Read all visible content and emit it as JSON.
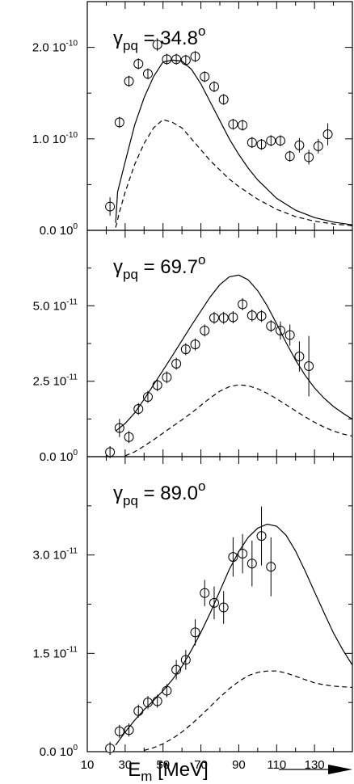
{
  "chart_data": [
    {
      "type": "scatter",
      "title": {
        "symbol": "γ",
        "subscript": "pq",
        "value": "= 34.8",
        "superscript": "o"
      },
      "xlim": [
        10,
        150
      ],
      "ylim": [
        0,
        2.5e-10
      ],
      "yticks": [
        {
          "value": 0,
          "mantissa": "0.0 10",
          "exp": "0"
        },
        {
          "value": 1e-10,
          "mantissa": "1.0 10",
          "exp": "-10"
        },
        {
          "value": 2e-10,
          "mantissa": "2.0 10",
          "exp": "-10"
        }
      ],
      "yminor": [
        5e-11,
        1.5e-10
      ],
      "series": [
        {
          "kind": "points",
          "data": [
            {
              "x": 22,
              "y": 2.6e-11,
              "err": 1e-11
            },
            {
              "x": 27,
              "y": 1.18e-10,
              "err": 6e-12
            },
            {
              "x": 32,
              "y": 1.63e-10,
              "err": 6e-12
            },
            {
              "x": 37,
              "y": 1.82e-10,
              "err": 6e-12
            },
            {
              "x": 42,
              "y": 1.71e-10,
              "err": 6e-12
            },
            {
              "x": 47,
              "y": 2.03e-10,
              "err": 7e-12
            },
            {
              "x": 52,
              "y": 1.87e-10,
              "err": 6e-12
            },
            {
              "x": 57,
              "y": 1.87e-10,
              "err": 6e-12
            },
            {
              "x": 62,
              "y": 1.86e-10,
              "err": 6e-12
            },
            {
              "x": 67,
              "y": 1.9e-10,
              "err": 6e-12
            },
            {
              "x": 72,
              "y": 1.68e-10,
              "err": 6e-12
            },
            {
              "x": 77,
              "y": 1.57e-10,
              "err": 6e-12
            },
            {
              "x": 82,
              "y": 1.43e-10,
              "err": 6e-12
            },
            {
              "x": 87,
              "y": 1.16e-10,
              "err": 6e-12
            },
            {
              "x": 92,
              "y": 1.15e-10,
              "err": 6e-12
            },
            {
              "x": 97,
              "y": 9.6e-11,
              "err": 6e-12
            },
            {
              "x": 102,
              "y": 9.4e-11,
              "err": 6e-12
            },
            {
              "x": 107,
              "y": 9.8e-11,
              "err": 6e-12
            },
            {
              "x": 112,
              "y": 9.8e-11,
              "err": 6e-12
            },
            {
              "x": 117,
              "y": 8.1e-11,
              "err": 6e-12
            },
            {
              "x": 122,
              "y": 9.3e-11,
              "err": 8e-12
            },
            {
              "x": 127,
              "y": 8e-11,
              "err": 8e-12
            },
            {
              "x": 132,
              "y": 9.2e-11,
              "err": 8e-12
            },
            {
              "x": 137,
              "y": 1.05e-10,
              "err": 1.2e-11
            }
          ]
        },
        {
          "kind": "solid",
          "data": [
            [
              25,
              8e-12
            ],
            [
              26,
              4.2e-11
            ],
            [
              30,
              7.5e-11
            ],
            [
              35,
              1.15e-10
            ],
            [
              40,
              1.45e-10
            ],
            [
              45,
              1.68e-10
            ],
            [
              50,
              1.84e-10
            ],
            [
              55,
              1.86e-10
            ],
            [
              60,
              1.85e-10
            ],
            [
              65,
              1.76e-10
            ],
            [
              70,
              1.6e-10
            ],
            [
              75,
              1.4e-10
            ],
            [
              80,
              1.2e-10
            ],
            [
              85,
              1e-10
            ],
            [
              90,
              8.3e-11
            ],
            [
              95,
              6.8e-11
            ],
            [
              100,
              5.5e-11
            ],
            [
              110,
              3.5e-11
            ],
            [
              120,
              2.2e-11
            ],
            [
              130,
              1.4e-11
            ],
            [
              140,
              9e-12
            ],
            [
              150,
              6e-12
            ]
          ]
        },
        {
          "kind": "dashed",
          "data": [
            [
              25,
              3e-12
            ],
            [
              27,
              2e-11
            ],
            [
              30,
              4.2e-11
            ],
            [
              35,
              7.2e-11
            ],
            [
              40,
              9.5e-11
            ],
            [
              45,
              1.12e-10
            ],
            [
              50,
              1.21e-10
            ],
            [
              55,
              1.18e-10
            ],
            [
              60,
              1.12e-10
            ],
            [
              65,
              1e-10
            ],
            [
              70,
              8.8e-11
            ],
            [
              75,
              7.6e-11
            ],
            [
              80,
              6.6e-11
            ],
            [
              85,
              5.6e-11
            ],
            [
              90,
              4.8e-11
            ],
            [
              95,
              4.1e-11
            ],
            [
              100,
              3.4e-11
            ],
            [
              110,
              2.3e-11
            ],
            [
              120,
              1.5e-11
            ],
            [
              130,
              1e-11
            ],
            [
              140,
              7e-12
            ],
            [
              150,
              5e-12
            ]
          ]
        }
      ]
    },
    {
      "type": "scatter",
      "title": {
        "symbol": "γ",
        "subscript": "pq",
        "value": "= 69.7",
        "superscript": "o"
      },
      "xlim": [
        10,
        150
      ],
      "ylim": [
        0,
        7.5e-11
      ],
      "yticks": [
        {
          "value": 0,
          "mantissa": "0.0 10",
          "exp": "0"
        },
        {
          "value": 2.5e-11,
          "mantissa": "2.5 10",
          "exp": "-11"
        },
        {
          "value": 5e-11,
          "mantissa": "5.0 10",
          "exp": "-11"
        }
      ],
      "yminor": [
        1.25e-11,
        3.75e-11,
        6.25e-11
      ],
      "series": [
        {
          "kind": "points",
          "data": [
            {
              "x": 22,
              "y": 1.5e-12,
              "err": 2e-12
            },
            {
              "x": 27,
              "y": 9.5e-12,
              "err": 3e-12
            },
            {
              "x": 32,
              "y": 6.5e-12,
              "err": 2e-12
            },
            {
              "x": 37,
              "y": 1.58e-11,
              "err": 2e-12
            },
            {
              "x": 42,
              "y": 1.98e-11,
              "err": 2e-12
            },
            {
              "x": 47,
              "y": 2.37e-11,
              "err": 2e-12
            },
            {
              "x": 52,
              "y": 2.63e-11,
              "err": 2e-12
            },
            {
              "x": 57,
              "y": 3.08e-11,
              "err": 2e-12
            },
            {
              "x": 62,
              "y": 3.56e-11,
              "err": 2e-12
            },
            {
              "x": 67,
              "y": 3.72e-11,
              "err": 2e-12
            },
            {
              "x": 72,
              "y": 4.18e-11,
              "err": 2e-12
            },
            {
              "x": 77,
              "y": 4.6e-11,
              "err": 2e-12
            },
            {
              "x": 82,
              "y": 4.6e-11,
              "err": 2e-12
            },
            {
              "x": 87,
              "y": 4.62e-11,
              "err": 2e-12
            },
            {
              "x": 92,
              "y": 5.05e-11,
              "err": 2e-12
            },
            {
              "x": 97,
              "y": 4.68e-11,
              "err": 2e-12
            },
            {
              "x": 102,
              "y": 4.66e-11,
              "err": 2e-12
            },
            {
              "x": 107,
              "y": 4.33e-11,
              "err": 2e-12
            },
            {
              "x": 112,
              "y": 4.18e-11,
              "err": 3e-12
            },
            {
              "x": 117,
              "y": 4.03e-11,
              "err": 3.5e-12
            },
            {
              "x": 122,
              "y": 3.32e-11,
              "err": 5e-12
            },
            {
              "x": 127,
              "y": 3e-11,
              "err": 1e-11
            }
          ]
        },
        {
          "kind": "solid",
          "data": [
            [
              25,
              8.5e-12
            ],
            [
              30,
              1.1e-11
            ],
            [
              35,
              1.45e-11
            ],
            [
              40,
              1.9e-11
            ],
            [
              45,
              2.38e-11
            ],
            [
              50,
              2.86e-11
            ],
            [
              55,
              3.35e-11
            ],
            [
              60,
              3.85e-11
            ],
            [
              65,
              4.35e-11
            ],
            [
              70,
              4.83e-11
            ],
            [
              75,
              5.3e-11
            ],
            [
              80,
              5.7e-11
            ],
            [
              85,
              5.96e-11
            ],
            [
              90,
              6.02e-11
            ],
            [
              95,
              5.86e-11
            ],
            [
              100,
              5.5e-11
            ],
            [
              105,
              5e-11
            ],
            [
              110,
              4.4e-11
            ],
            [
              115,
              3.78e-11
            ],
            [
              120,
              3.2e-11
            ],
            [
              125,
              2.7e-11
            ],
            [
              130,
              2.28e-11
            ],
            [
              135,
              1.94e-11
            ],
            [
              140,
              1.66e-11
            ],
            [
              145,
              1.44e-11
            ],
            [
              150,
              1.24e-11
            ]
          ]
        },
        {
          "kind": "dashed",
          "data": [
            [
              30,
              3e-13
            ],
            [
              35,
              1.6e-12
            ],
            [
              40,
              3.5e-12
            ],
            [
              45,
              5.6e-12
            ],
            [
              50,
              7.8e-12
            ],
            [
              55,
              1e-11
            ],
            [
              60,
              1.22e-11
            ],
            [
              65,
              1.45e-11
            ],
            [
              70,
              1.7e-11
            ],
            [
              75,
              1.95e-11
            ],
            [
              80,
              2.17e-11
            ],
            [
              85,
              2.32e-11
            ],
            [
              90,
              2.38e-11
            ],
            [
              95,
              2.35e-11
            ],
            [
              100,
              2.25e-11
            ],
            [
              105,
              2.1e-11
            ],
            [
              110,
              1.92e-11
            ],
            [
              115,
              1.72e-11
            ],
            [
              120,
              1.52e-11
            ],
            [
              125,
              1.32e-11
            ],
            [
              130,
              1.14e-11
            ],
            [
              135,
              9.8e-12
            ],
            [
              140,
              8.5e-12
            ],
            [
              145,
              7.5e-12
            ],
            [
              150,
              6.8e-12
            ]
          ]
        }
      ]
    },
    {
      "type": "scatter",
      "title": {
        "symbol": "γ",
        "subscript": "pq",
        "value": "= 89.0",
        "superscript": "o"
      },
      "xlim": [
        10,
        150
      ],
      "ylim": [
        0,
        4.5e-11
      ],
      "yticks": [
        {
          "value": 0,
          "mantissa": "0.0 10",
          "exp": "0"
        },
        {
          "value": 1.5e-11,
          "mantissa": "1.5 10",
          "exp": "-11"
        },
        {
          "value": 3e-11,
          "mantissa": "3.0 10",
          "exp": "-11"
        }
      ],
      "yminor": [
        7.5e-12,
        2.25e-11,
        3.75e-11
      ],
      "series": [
        {
          "kind": "points",
          "data": [
            {
              "x": 22,
              "y": 5e-13,
              "err": 1e-12
            },
            {
              "x": 27,
              "y": 3.1e-12,
              "err": 1e-12
            },
            {
              "x": 32,
              "y": 3.3e-12,
              "err": 1e-12
            },
            {
              "x": 37,
              "y": 6.2e-12,
              "err": 1e-12
            },
            {
              "x": 42,
              "y": 7.5e-12,
              "err": 1e-12
            },
            {
              "x": 47,
              "y": 7.7e-12,
              "err": 1e-12
            },
            {
              "x": 52,
              "y": 9.3e-12,
              "err": 1e-12
            },
            {
              "x": 57,
              "y": 1.25e-11,
              "err": 1.5e-12
            },
            {
              "x": 62,
              "y": 1.4e-11,
              "err": 1.5e-12
            },
            {
              "x": 67,
              "y": 1.82e-11,
              "err": 2e-12
            },
            {
              "x": 72,
              "y": 2.42e-11,
              "err": 2e-12
            },
            {
              "x": 77,
              "y": 2.27e-11,
              "err": 2.5e-12
            },
            {
              "x": 82,
              "y": 2.2e-11,
              "err": 2.5e-12
            },
            {
              "x": 87,
              "y": 2.97e-11,
              "err": 3e-12
            },
            {
              "x": 92,
              "y": 3.02e-11,
              "err": 3e-12
            },
            {
              "x": 97,
              "y": 2.87e-11,
              "err": 3.5e-12
            },
            {
              "x": 102,
              "y": 3.29e-11,
              "err": 4.5e-12
            },
            {
              "x": 107,
              "y": 2.82e-11,
              "err": 4.5e-12
            }
          ]
        },
        {
          "kind": "solid",
          "data": [
            [
              25,
              1e-12
            ],
            [
              30,
              3e-12
            ],
            [
              35,
              4.8e-12
            ],
            [
              40,
              6.4e-12
            ],
            [
              45,
              7.8e-12
            ],
            [
              50,
              9.3e-12
            ],
            [
              55,
              1.1e-11
            ],
            [
              60,
              1.3e-11
            ],
            [
              65,
              1.55e-11
            ],
            [
              70,
              1.82e-11
            ],
            [
              75,
              2.12e-11
            ],
            [
              80,
              2.45e-11
            ],
            [
              85,
              2.78e-11
            ],
            [
              90,
              3.05e-11
            ],
            [
              95,
              3.27e-11
            ],
            [
              100,
              3.41e-11
            ],
            [
              105,
              3.47e-11
            ],
            [
              110,
              3.44e-11
            ],
            [
              115,
              3.3e-11
            ],
            [
              120,
              3.06e-11
            ],
            [
              125,
              2.76e-11
            ],
            [
              130,
              2.44e-11
            ],
            [
              135,
              2.12e-11
            ],
            [
              140,
              1.81e-11
            ],
            [
              145,
              1.55e-11
            ],
            [
              150,
              1.32e-11
            ]
          ]
        },
        {
          "kind": "dashed",
          "data": [
            [
              40,
              2e-13
            ],
            [
              45,
              6e-13
            ],
            [
              50,
              1.2e-12
            ],
            [
              55,
              2e-12
            ],
            [
              60,
              3e-12
            ],
            [
              65,
              4.2e-12
            ],
            [
              70,
              5.5e-12
            ],
            [
              75,
              6.9e-12
            ],
            [
              80,
              8.3e-12
            ],
            [
              85,
              9.6e-12
            ],
            [
              90,
              1.07e-11
            ],
            [
              95,
              1.16e-11
            ],
            [
              100,
              1.21e-11
            ],
            [
              105,
              1.23e-11
            ],
            [
              110,
              1.23e-11
            ],
            [
              115,
              1.2e-11
            ],
            [
              120,
              1.15e-11
            ],
            [
              125,
              1.1e-11
            ],
            [
              130,
              1.05e-11
            ],
            [
              135,
              1.02e-11
            ],
            [
              140,
              1e-11
            ],
            [
              145,
              9.9e-12
            ],
            [
              150,
              9.8e-12
            ]
          ]
        }
      ]
    }
  ],
  "x_axis": {
    "ticks": [
      "10",
      "30",
      "50",
      "70",
      "90",
      "110",
      "130"
    ],
    "label": "E",
    "label_sub": "m",
    "label_rest": " [MeV]"
  }
}
